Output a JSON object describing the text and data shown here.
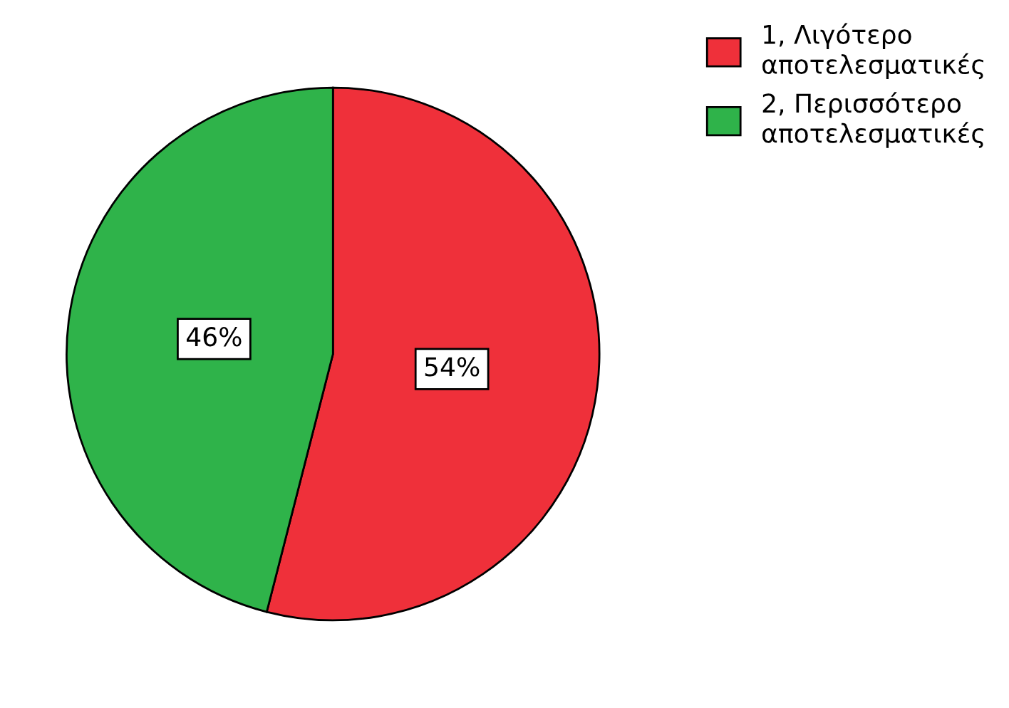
{
  "chart_data": {
    "type": "pie",
    "categories": [
      "1, Λιγότερο\nαποτελεσματικές",
      "2, Περισσότερο\nαποτελεσματικές"
    ],
    "values": [
      54,
      46
    ],
    "colors": [
      "#ef303a",
      "#2fb34a"
    ],
    "value_labels": [
      "54%",
      "46%"
    ],
    "legend": "top right"
  }
}
